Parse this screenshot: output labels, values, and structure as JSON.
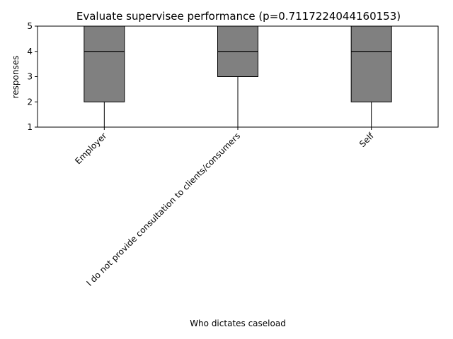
{
  "chart_data": {
    "type": "box",
    "title": "Evaluate supervisee performance (p=0.7117224044160153)",
    "xlabel": "Who dictates caseload",
    "ylabel": "responses",
    "ylim": [
      1,
      5
    ],
    "yticks": [
      1,
      2,
      3,
      4,
      5
    ],
    "grid": false,
    "categories": [
      "Employer",
      "I do not provide consultation to clients/consumers",
      "Self"
    ],
    "boxes": [
      {
        "category": "Employer",
        "whisker_low": 1,
        "q1": 2,
        "median": 4,
        "q3": 5,
        "whisker_high": 5
      },
      {
        "category": "I do not provide consultation to clients/consumers",
        "whisker_low": 1,
        "q1": 3,
        "median": 4,
        "q3": 5,
        "whisker_high": 5
      },
      {
        "category": "Self",
        "whisker_low": 1,
        "q1": 2,
        "median": 4,
        "q3": 5,
        "whisker_high": 5
      }
    ],
    "colors": {
      "box_fill": "#808080",
      "box_edge": "#000000",
      "median": "#000000",
      "whisker": "#000000"
    }
  }
}
